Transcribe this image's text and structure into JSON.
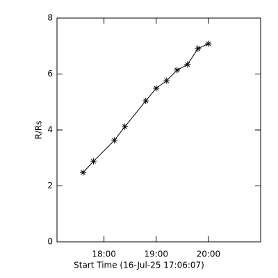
{
  "chart_data": {
    "type": "line",
    "x_label": "Start Time (16-Jul-25 17:06:07)",
    "y_label": "R/Rs",
    "x": [
      17.6,
      17.8,
      18.2,
      18.4,
      18.8,
      19.0,
      19.2,
      19.4,
      19.6,
      19.8,
      20.0
    ],
    "values": [
      2.48,
      2.88,
      3.63,
      4.12,
      5.04,
      5.49,
      5.76,
      6.14,
      6.34,
      6.91,
      7.08
    ],
    "color": "#000000",
    "marker": "asterisk",
    "xlim": [
      17.1,
      21.0
    ],
    "ylim": [
      0,
      8
    ],
    "xticks": [
      {
        "value": 18,
        "label": "18:00"
      },
      {
        "value": 19,
        "label": "19:00"
      },
      {
        "value": 20,
        "label": "20:00"
      }
    ],
    "yticks": [
      0,
      2,
      4,
      6,
      8
    ]
  }
}
